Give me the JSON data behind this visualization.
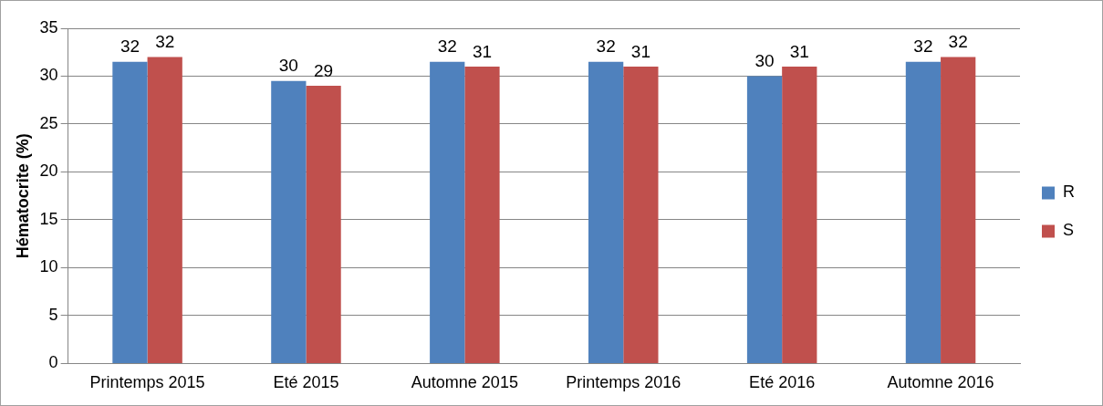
{
  "chart_data": {
    "type": "bar",
    "ylabel": "Hématocrite (%)",
    "categories": [
      "Printemps 2015",
      "Eté 2015",
      "Automne 2015",
      "Printemps 2016",
      "Eté 2016",
      "Automne 2016"
    ],
    "series": [
      {
        "name": "R",
        "color": "#4f81bd",
        "values": [
          31.5,
          29.5,
          31.5,
          31.5,
          30,
          31.5
        ],
        "value_labels": [
          "32",
          "30",
          "32",
          "32",
          "30",
          "32"
        ]
      },
      {
        "name": "S",
        "color": "#c0504d",
        "values": [
          32,
          29,
          31,
          31,
          31,
          32
        ],
        "value_labels": [
          "32",
          "29",
          "31",
          "31",
          "31",
          "32"
        ]
      }
    ],
    "ylim": [
      0,
      35
    ],
    "yticks": [
      0,
      5,
      10,
      15,
      20,
      25,
      30,
      35
    ],
    "grid": "y",
    "legend": "right"
  }
}
